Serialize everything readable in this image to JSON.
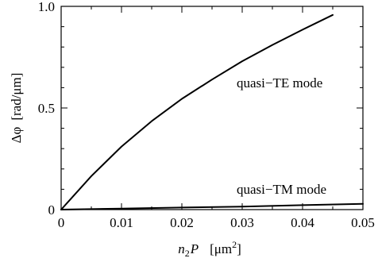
{
  "chart_data": {
    "type": "line",
    "xlabel_var": "n",
    "xlabel_sub": "2",
    "xlabel_var2": "P",
    "xlabel_unit_open": "[μm",
    "xlabel_unit_sup": "2",
    "xlabel_unit_close": "]",
    "ylabel_symbol": "Δφ",
    "ylabel_unit": "[rad/μm]",
    "xlim": [
      0,
      0.05
    ],
    "ylim": [
      0,
      1.0
    ],
    "x_ticks": [
      0,
      0.01,
      0.02,
      0.03,
      0.04,
      0.05
    ],
    "x_tick_labels": [
      "0",
      "0.01",
      "0.02",
      "0.03",
      "0.04",
      "0.05"
    ],
    "y_ticks": [
      0,
      0.5,
      1.0
    ],
    "y_tick_labels": [
      "0",
      "0.5",
      "1.0"
    ],
    "grid": false,
    "series": [
      {
        "name": "quasi−TE mode",
        "x": [
          0,
          0.005,
          0.01,
          0.015,
          0.02,
          0.025,
          0.03,
          0.035,
          0.04,
          0.045
        ],
        "y": [
          0,
          0.165,
          0.31,
          0.435,
          0.545,
          0.64,
          0.73,
          0.81,
          0.885,
          0.958
        ]
      },
      {
        "name": "quasi−TM mode",
        "x": [
          0,
          0.01,
          0.02,
          0.03,
          0.04,
          0.05
        ],
        "y": [
          0,
          0.005,
          0.01,
          0.015,
          0.022,
          0.028
        ]
      }
    ]
  }
}
